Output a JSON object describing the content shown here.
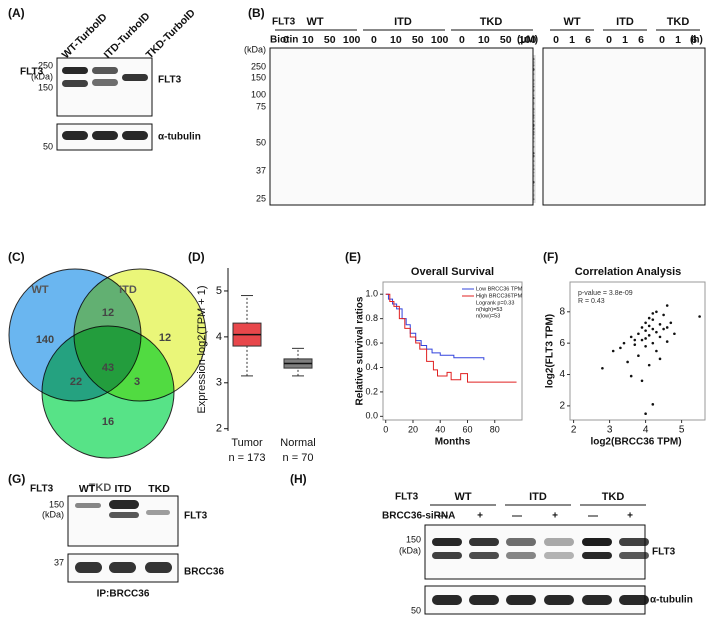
{
  "A": {
    "label": "(A)",
    "flt3": "FLT3",
    "lanes": [
      "WT-TurboID",
      "ITD-TurboID",
      "TKD-TurboID"
    ],
    "kda": "(kDa)",
    "markers": [
      "250",
      "150",
      "50"
    ],
    "bands": [
      "FLT3",
      "α-tubulin"
    ]
  },
  "B": {
    "label": "(B)",
    "flt3": "FLT3",
    "biotin": "Biotin",
    "groups": [
      "WT",
      "ITD",
      "TKD"
    ],
    "doses": [
      "0",
      "10",
      "50",
      "100"
    ],
    "dose_unit": "(μM)",
    "kda": "(kDa)",
    "markers": [
      "250",
      "150",
      "100",
      "75",
      "50",
      "37",
      "25"
    ],
    "time_groups": [
      "WT",
      "ITD",
      "TKD"
    ],
    "times": [
      "0",
      "1",
      "6"
    ],
    "time_unit": "(h)"
  },
  "C": {
    "label": "(C)",
    "sets": [
      "WT",
      "ITD",
      "TKD"
    ],
    "regions": [
      140,
      12,
      12,
      22,
      43,
      3,
      16
    ]
  },
  "D": {
    "label": "(D)",
    "ylabel": "Expression-log2(TPM + 1)",
    "ylim": [
      1.95,
      5.5
    ],
    "yticks": [
      2,
      3,
      4,
      5
    ],
    "groups": [
      {
        "name": "Tumor",
        "n": "n = 173",
        "color": "#e8474b",
        "min": 3.15,
        "q1": 3.8,
        "median": 4.05,
        "q3": 4.3,
        "max": 4.9
      },
      {
        "name": "Normal",
        "n": "n = 70",
        "color": "#7f7f7f",
        "min": 3.15,
        "q1": 3.32,
        "median": 3.42,
        "q3": 3.52,
        "max": 3.75
      }
    ]
  },
  "E": {
    "label": "(E)",
    "title": "Overall Survival",
    "ylabel": "Relative survival ratios",
    "xlabel": "Months",
    "xlim": [
      -2,
      100
    ],
    "ylim": [
      -0.03,
      1.1
    ],
    "xticks": [
      0,
      20,
      40,
      60,
      80
    ],
    "yticks": [
      {
        "value": 0,
        "label": "0.0"
      },
      0.2,
      0.4,
      0.6,
      0.8,
      {
        "value": 1,
        "label": "1.0"
      }
    ],
    "series": [
      {
        "name": "Low BRCC36 TPM",
        "color": "#3344dd",
        "x": [
          0,
          2,
          5,
          8,
          12,
          15,
          18,
          22,
          26,
          30,
          34,
          40,
          50,
          72
        ],
        "y": [
          1,
          0.96,
          0.92,
          0.88,
          0.8,
          0.75,
          0.68,
          0.62,
          0.58,
          0.55,
          0.52,
          0.5,
          0.48,
          0.46
        ]
      },
      {
        "name": "High BRCC36TPM",
        "color": "#e02020",
        "x": [
          0,
          3,
          6,
          10,
          14,
          18,
          22,
          25,
          30,
          35,
          38,
          45,
          48,
          55,
          60,
          96
        ],
        "y": [
          1,
          0.94,
          0.9,
          0.8,
          0.72,
          0.65,
          0.6,
          0.55,
          0.45,
          0.38,
          0.33,
          0.36,
          0.3,
          0.35,
          0.28,
          0.28
        ]
      }
    ],
    "stats": [
      "Logrank p=0.33",
      "n(high)=53",
      "n(low)=53"
    ]
  },
  "F": {
    "label": "(F)",
    "title": "Correlation Analysis",
    "xlabel": "log2(BRCC36 TPM)",
    "ylabel": "log2(FLT3 TPM)",
    "xlim": [
      1.9,
      5.65
    ],
    "ylim": [
      1.1,
      9.9
    ],
    "xticks": [
      2,
      3,
      4,
      5
    ],
    "yticks": [
      2,
      4,
      6,
      8
    ],
    "annotations": [
      "p-value = 3.8e-09",
      "R = 0.43"
    ],
    "x": [
      3.1,
      3.4,
      3.5,
      3.6,
      3.7,
      3.8,
      3.8,
      3.9,
      3.9,
      4.0,
      4.0,
      4.0,
      4.1,
      4.1,
      4.1,
      4.2,
      4.2,
      4.2,
      4.3,
      4.3,
      4.4,
      4.4,
      4.5,
      4.5,
      4.6,
      4.6,
      4.7,
      4.8,
      3.6,
      3.9,
      4.2,
      4.0,
      3.7,
      4.4,
      4.1,
      2.8,
      4.3,
      5.5,
      4.0,
      3.3,
      4.6,
      4.2
    ],
    "y": [
      5.5,
      6.0,
      4.8,
      6.4,
      5.9,
      6.6,
      5.2,
      7.0,
      6.2,
      6.8,
      5.8,
      7.3,
      6.5,
      7.1,
      4.6,
      6.9,
      6.0,
      7.5,
      6.7,
      5.5,
      7.2,
      6.4,
      7.8,
      6.9,
      7.0,
      8.4,
      7.3,
      6.6,
      3.9,
      3.6,
      2.1,
      1.5,
      6.2,
      5.0,
      7.6,
      4.4,
      8.0,
      7.7,
      6.3,
      5.7,
      6.1,
      7.9
    ]
  },
  "G": {
    "label": "(G)",
    "flt3": "FLT3",
    "lanes": [
      "WT",
      "ITD",
      "TKD"
    ],
    "kda": "(kDa)",
    "markers": [
      "150",
      "37"
    ],
    "bands": [
      "FLT3",
      "BRCC36"
    ],
    "ip": "IP:BRCC36"
  },
  "H": {
    "label": "(H)",
    "flt3": "FLT3",
    "groups": [
      "WT",
      "ITD",
      "TKD"
    ],
    "sirna": "BRCC36-siRNA",
    "signs": [
      "—",
      "+",
      "—",
      "+",
      "—",
      "+"
    ],
    "kda": "(kDa)",
    "markers": [
      "150",
      "50"
    ],
    "bands": [
      "FLT3",
      "α-tubulin"
    ]
  }
}
